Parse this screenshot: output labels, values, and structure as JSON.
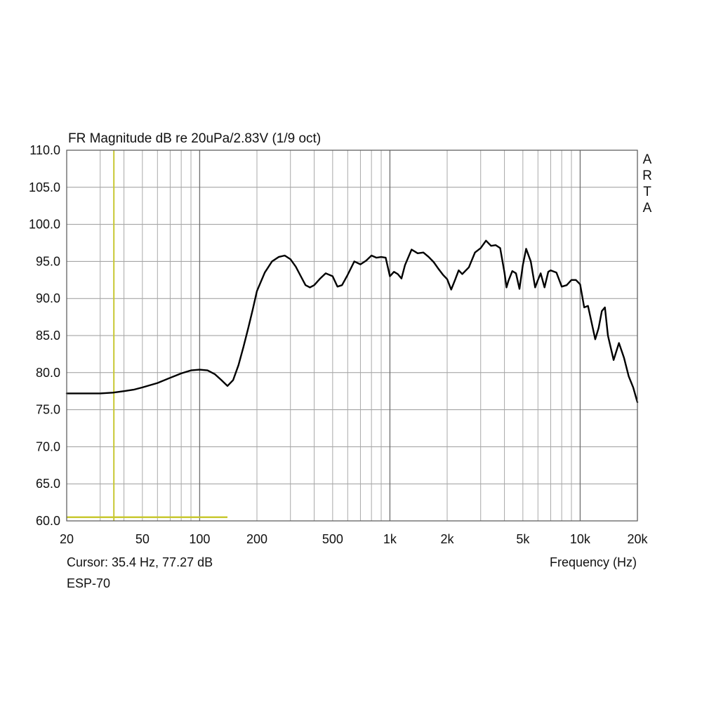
{
  "chart_data": {
    "type": "line",
    "title": "FR Magnitude dB re 20uPa/2.83V (1/9 oct)",
    "xlabel": "Frequency (Hz)",
    "ylabel": "",
    "x_scale": "log",
    "xlim": [
      20,
      20000
    ],
    "ylim": [
      60,
      110
    ],
    "grid": true,
    "yticks": [
      "110.0",
      "105.0",
      "100.0",
      "95.0",
      "90.0",
      "85.0",
      "80.0",
      "75.0",
      "70.0",
      "65.0",
      "60.0"
    ],
    "xticks": [
      {
        "value": 20,
        "label": "20"
      },
      {
        "value": 50,
        "label": "50"
      },
      {
        "value": 100,
        "label": "100"
      },
      {
        "value": 200,
        "label": "200"
      },
      {
        "value": 500,
        "label": "500"
      },
      {
        "value": 1000,
        "label": "1k"
      },
      {
        "value": 2000,
        "label": "2k"
      },
      {
        "value": 5000,
        "label": "5k"
      },
      {
        "value": 10000,
        "label": "10k"
      },
      {
        "value": 20000,
        "label": "20k"
      }
    ],
    "cursor": {
      "label": "Cursor: 35.4 Hz, 77.27 dB",
      "frequency": 35.4,
      "level": 77.27,
      "color": "#c8c832",
      "ref_level": 60.5,
      "ref_until": 140
    },
    "device_label": "ESP-70",
    "brand": "ARTA",
    "series": [
      {
        "color": "#000000",
        "x": [
          20,
          25,
          30,
          35,
          40,
          45,
          50,
          60,
          70,
          80,
          90,
          100,
          110,
          120,
          130,
          140,
          150,
          160,
          170,
          180,
          190,
          200,
          220,
          240,
          260,
          280,
          300,
          320,
          340,
          360,
          380,
          400,
          430,
          460,
          500,
          530,
          560,
          600,
          650,
          700,
          750,
          800,
          850,
          900,
          950,
          1000,
          1050,
          1100,
          1150,
          1200,
          1300,
          1400,
          1500,
          1600,
          1700,
          1800,
          1900,
          2000,
          2100,
          2200,
          2300,
          2400,
          2600,
          2800,
          3000,
          3200,
          3400,
          3600,
          3800,
          4000,
          4100,
          4200,
          4400,
          4600,
          4800,
          5000,
          5200,
          5500,
          5800,
          6000,
          6200,
          6500,
          6800,
          7000,
          7500,
          8000,
          8500,
          9000,
          9500,
          10000,
          10500,
          11000,
          12000,
          12500,
          13000,
          13500,
          14000,
          15000,
          16000,
          17000,
          18000,
          19000,
          20000
        ],
        "y": [
          77.2,
          77.2,
          77.2,
          77.3,
          77.5,
          77.7,
          78.0,
          78.6,
          79.3,
          79.9,
          80.3,
          80.4,
          80.3,
          79.8,
          79.0,
          78.2,
          79.0,
          81.0,
          83.5,
          86.0,
          88.5,
          91.0,
          93.5,
          95.0,
          95.6,
          95.8,
          95.3,
          94.3,
          93.0,
          91.8,
          91.5,
          91.8,
          92.7,
          93.4,
          93.0,
          91.6,
          91.8,
          93.2,
          95.0,
          94.6,
          95.1,
          95.8,
          95.5,
          95.6,
          95.5,
          93.0,
          93.6,
          93.3,
          92.7,
          94.5,
          96.6,
          96.1,
          96.2,
          95.6,
          94.9,
          94.0,
          93.2,
          92.6,
          91.2,
          92.5,
          93.8,
          93.3,
          94.2,
          96.2,
          96.8,
          97.8,
          97.1,
          97.2,
          96.8,
          93.5,
          91.5,
          92.4,
          93.7,
          93.4,
          91.3,
          94.5,
          96.7,
          95.0,
          91.5,
          92.5,
          93.4,
          91.5,
          93.6,
          93.8,
          93.5,
          91.6,
          91.8,
          92.5,
          92.5,
          91.9,
          88.8,
          89.0,
          84.5,
          86.0,
          88.3,
          88.8,
          85.0,
          81.7,
          84.0,
          82.0,
          79.5,
          78.0,
          76.0
        ]
      }
    ]
  }
}
